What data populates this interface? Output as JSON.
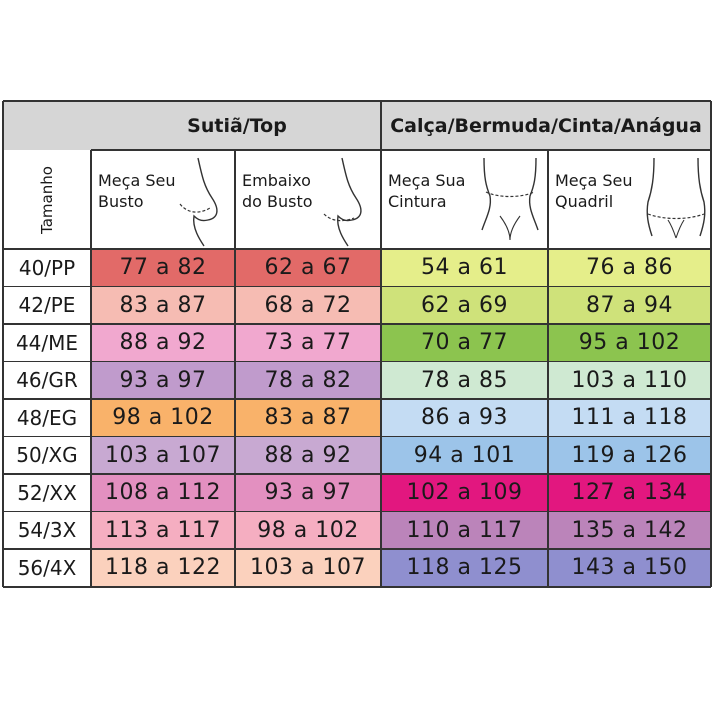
{
  "groups": {
    "top": "Sutiã/Top",
    "bottom": "Calça/Bermuda/Cinta/Anágua"
  },
  "headers": {
    "size": "Tamanho",
    "bust": [
      "Meça Seu",
      "Busto"
    ],
    "underbust": [
      "Embaixo",
      "do Busto"
    ],
    "waist": [
      "Meça Sua",
      "Cintura"
    ],
    "hip": [
      "Meça Seu",
      "Quadril"
    ]
  },
  "icons": [
    "bust-silhouette-icon",
    "underbust-silhouette-icon",
    "waist-silhouette-icon",
    "hip-silhouette-icon"
  ],
  "rows": [
    {
      "size": "40/PP",
      "bust": "77 a 82",
      "underbust": "62 a 67",
      "waist": "54 a 61",
      "hip": "76 a 86",
      "colors": [
        "#e26a68",
        "#e26a68",
        "#e5ee8a",
        "#e5ee8a"
      ]
    },
    {
      "size": "42/PE",
      "bust": "83 a 87",
      "underbust": "68 a 72",
      "waist": "62 a 69",
      "hip": "87 a 94",
      "colors": [
        "#f6bcb3",
        "#f6bcb3",
        "#cfe27a",
        "#cfe27a"
      ]
    },
    {
      "size": "44/ME",
      "bust": "88 a 92",
      "underbust": "73 a 77",
      "waist": "70 a 77",
      "hip": "95 a 102",
      "colors": [
        "#f1a8cf",
        "#f1a8cf",
        "#8cc44f",
        "#8cc44f"
      ]
    },
    {
      "size": "46/GR",
      "bust": "93 a 97",
      "underbust": "78 a 82",
      "waist": "78 a 85",
      "hip": "103 a 110",
      "colors": [
        "#c09bcc",
        "#c09bcc",
        "#cfe9d2",
        "#cfe9d2"
      ]
    },
    {
      "size": "48/EG",
      "bust": "98 a 102",
      "underbust": "83 a 87",
      "waist": "86 a 93",
      "hip": "111 a 118",
      "colors": [
        "#f9b26a",
        "#f9b26a",
        "#c4dcf3",
        "#c4dcf3"
      ]
    },
    {
      "size": "50/XG",
      "bust": "103 a 107",
      "underbust": "88 a 92",
      "waist": "94 a 101",
      "hip": "119 a 126",
      "colors": [
        "#c8a9d2",
        "#c8a9d2",
        "#9cc4e9",
        "#9cc4e9"
      ]
    },
    {
      "size": "52/XX",
      "bust": "108 a 112",
      "underbust": "93 a 97",
      "waist": "102 a 109",
      "hip": "127 a 134",
      "colors": [
        "#e390c0",
        "#e390c0",
        "#e2177f",
        "#e2177f"
      ]
    },
    {
      "size": "54/3X",
      "bust": "113 a 117",
      "underbust": "98 a 102",
      "waist": "110 a 117",
      "hip": "135 a 142",
      "colors": [
        "#f5aec1",
        "#f5aec1",
        "#bb84ba",
        "#bb84ba"
      ]
    },
    {
      "size": "56/4X",
      "bust": "118 a 122",
      "underbust": "103 a 107",
      "waist": "118 a 125",
      "hip": "143 a 150",
      "colors": [
        "#fbd1bd",
        "#fbd1bd",
        "#8f8fcf",
        "#8f8fcf"
      ]
    }
  ]
}
